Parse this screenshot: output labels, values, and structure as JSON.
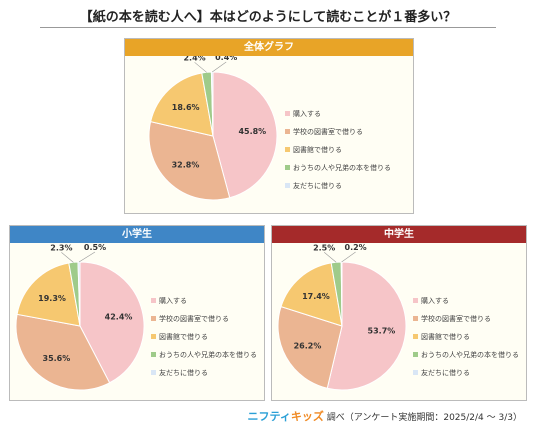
{
  "title": "【紙の本を読む人へ】本はどのようにして読むことが１番多い？",
  "categories": [
    "購入する",
    "学校の図書室で借りる",
    "図書館で借りる",
    "おうちの人や兄弟の本を借りる",
    "友だちに借りる"
  ],
  "colors": [
    "#f6c5c8",
    "#ebb592",
    "#f6c870",
    "#9fcb8a",
    "#d9e6f5"
  ],
  "chart_data": [
    {
      "type": "pie",
      "title": "全体グラフ",
      "categories": [
        "購入する",
        "学校の図書室で借りる",
        "図書館で借りる",
        "おうちの人や兄弟の本を借りる",
        "友だちに借りる"
      ],
      "values": [
        45.8,
        32.8,
        18.6,
        2.4,
        0.4
      ],
      "labels": [
        "45.8%",
        "32.8%",
        "18.6%",
        "2.4%",
        "0.4%"
      ],
      "legend": "right"
    },
    {
      "type": "pie",
      "title": "小学生",
      "categories": [
        "購入する",
        "学校の図書室で借りる",
        "図書館で借りる",
        "おうちの人や兄弟の本を借りる",
        "友だちに借りる"
      ],
      "values": [
        42.4,
        35.6,
        19.3,
        2.3,
        0.5
      ],
      "labels": [
        "42.4%",
        "35.6%",
        "19.3%",
        "2.3%",
        "0.5%"
      ],
      "legend": "right"
    },
    {
      "type": "pie",
      "title": "中学生",
      "categories": [
        "購入する",
        "学校の図書室で借りる",
        "図書館で借りる",
        "おうちの人や兄弟の本を借りる",
        "友だちに借りる"
      ],
      "values": [
        53.7,
        26.2,
        17.4,
        2.5,
        0.2
      ],
      "labels": [
        "53.7%",
        "26.2%",
        "17.4%",
        "2.5%",
        "0.2%"
      ],
      "legend": "right"
    }
  ],
  "footer": {
    "brand_part1": "ニフティ",
    "brand_part2": "キッズ",
    "text": "調べ（アンケート実施期間：2025/2/4 ～ 3/3）"
  }
}
